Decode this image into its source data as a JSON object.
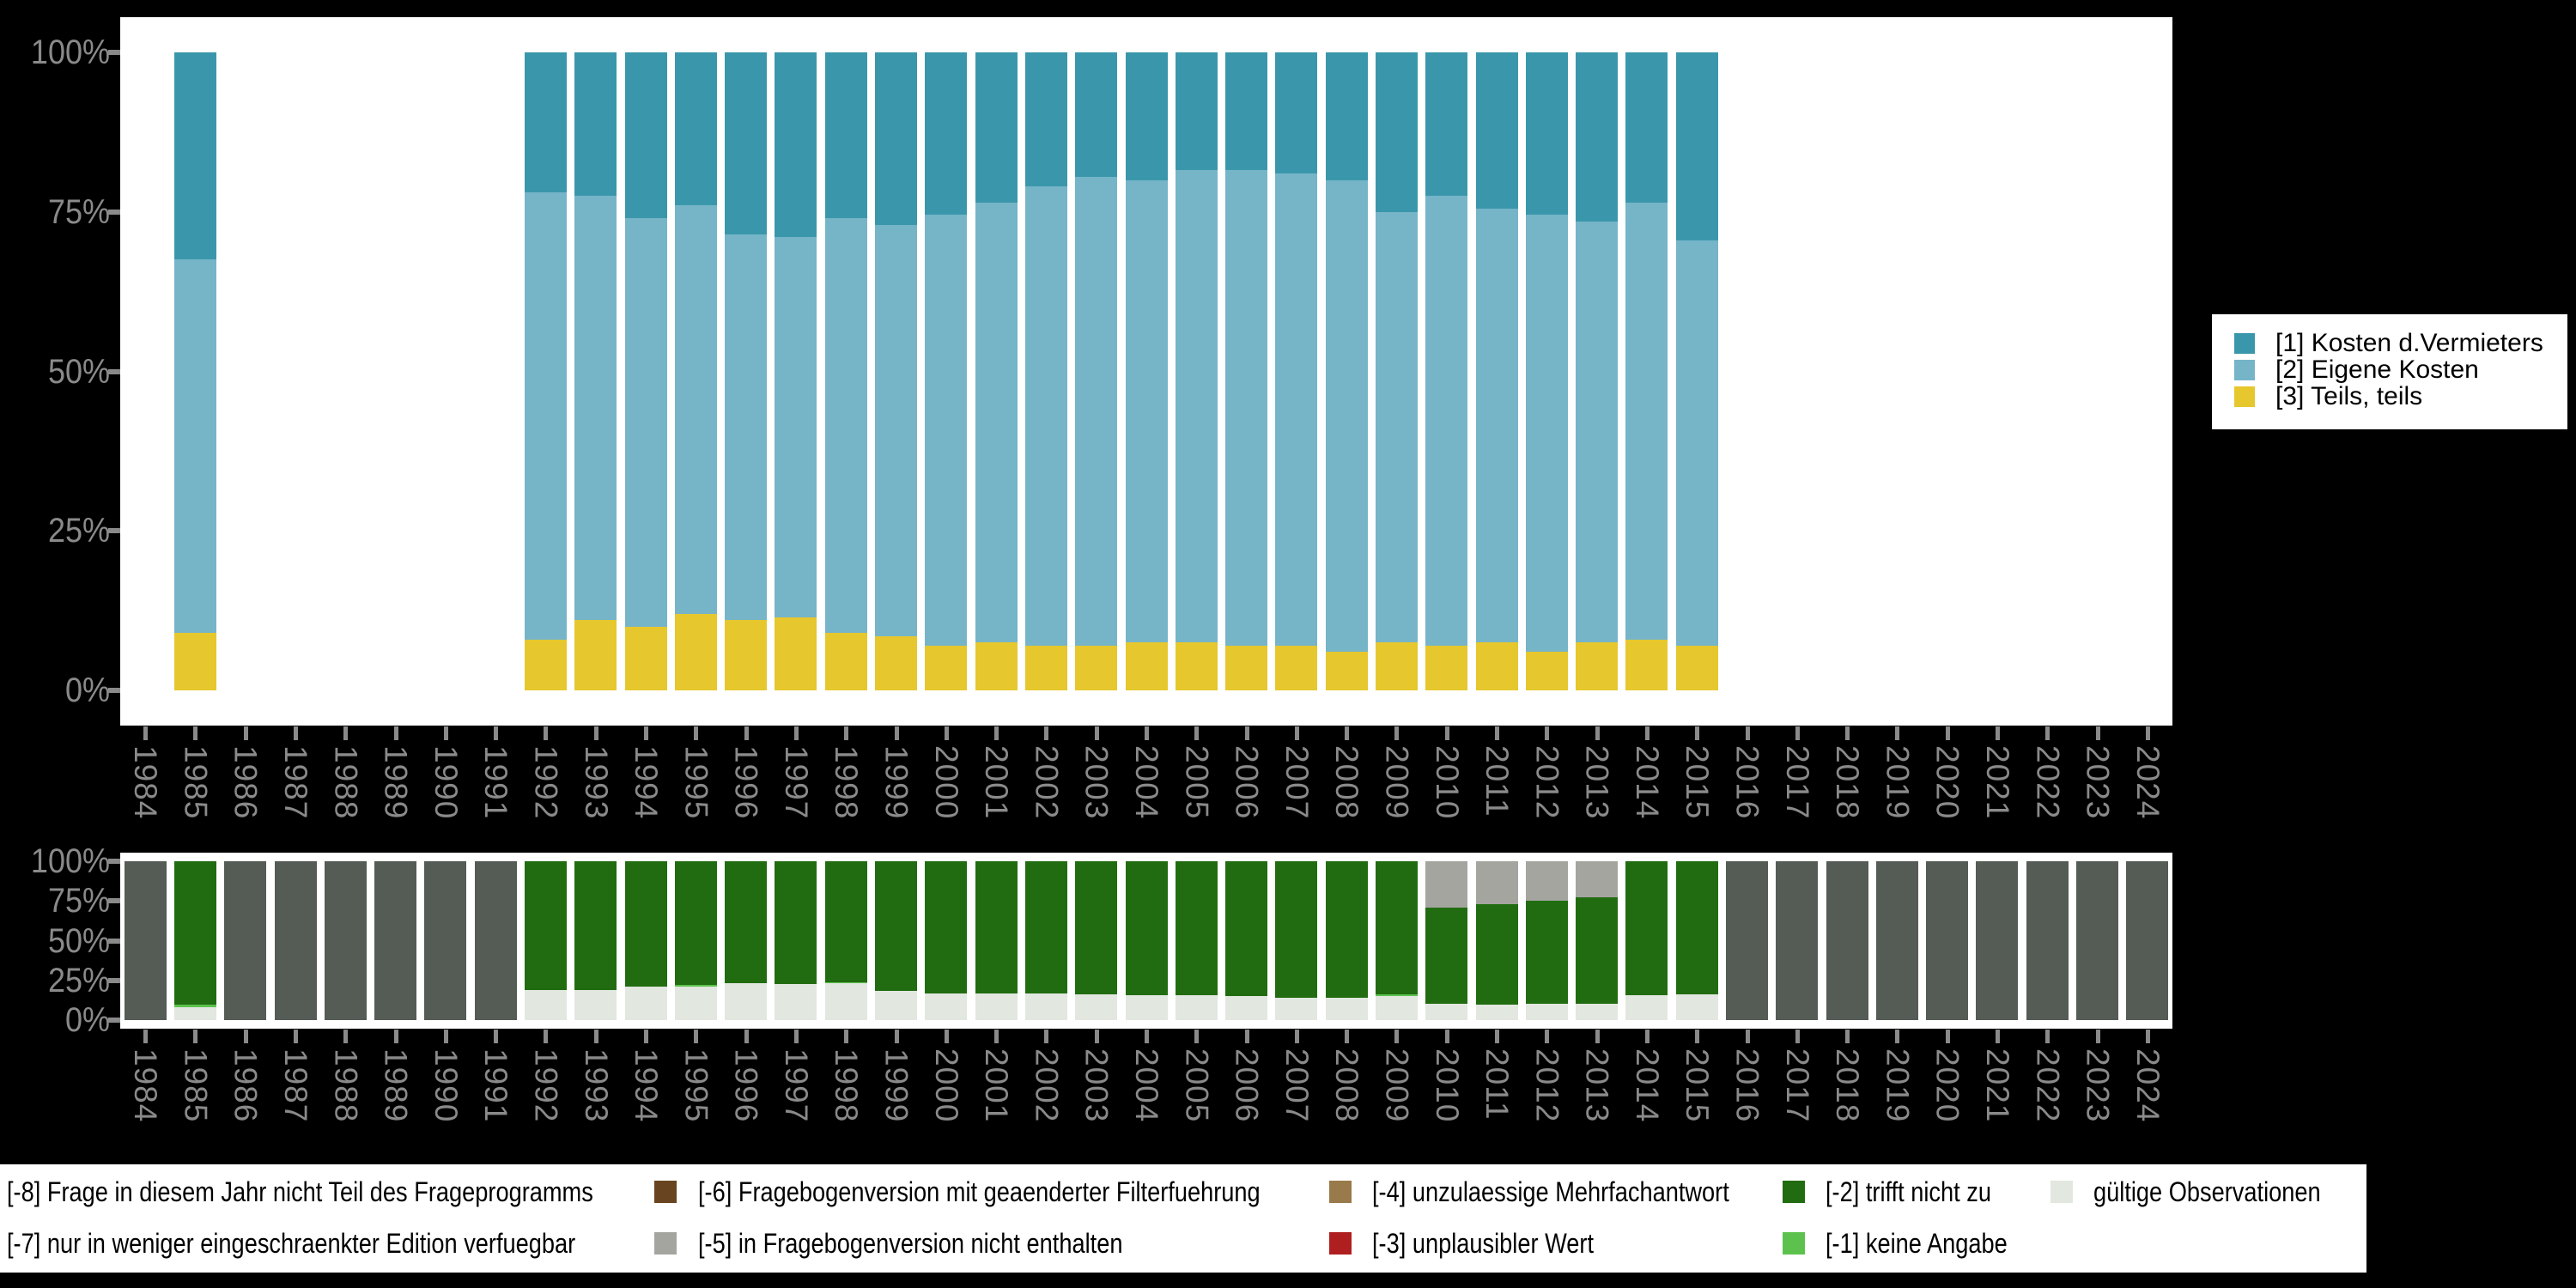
{
  "page": {
    "background": "#000000",
    "panel_color": "#ffffff",
    "axis_text_color": "#8a8a8a",
    "legend_text_color": "#000000"
  },
  "chart_data": [
    {
      "type": "bar",
      "stacked": true,
      "unit": "percent",
      "title": "",
      "xlabel": "",
      "ylabel": "",
      "ylim": [
        0,
        100
      ],
      "grid": false,
      "legend_position": "right",
      "yticks": [
        "100%",
        "75%",
        "50%",
        "25%",
        "0%"
      ],
      "categories": [
        "1984",
        "1985",
        "1986",
        "1987",
        "1988",
        "1989",
        "1990",
        "1991",
        "1992",
        "1993",
        "1994",
        "1995",
        "1996",
        "1997",
        "1998",
        "1999",
        "2000",
        "2001",
        "2002",
        "2003",
        "2004",
        "2005",
        "2006",
        "2007",
        "2008",
        "2009",
        "2010",
        "2011",
        "2012",
        "2013",
        "2014",
        "2015",
        "2016",
        "2017",
        "2018",
        "2019",
        "2020",
        "2021",
        "2022",
        "2023",
        "2024"
      ],
      "series": [
        {
          "name": "[3] Teils, teils",
          "color": "#e6c72e",
          "values": [
            0,
            9,
            0,
            0,
            0,
            0,
            0,
            0,
            8,
            11,
            10,
            12,
            11,
            11.5,
            9,
            8.5,
            7,
            7.5,
            7,
            7,
            7.5,
            7.5,
            7,
            7,
            6,
            7.5,
            7,
            7.5,
            6,
            7.5,
            8,
            7,
            0,
            0,
            0,
            0,
            0,
            0,
            0,
            0,
            0
          ]
        },
        {
          "name": "[2] Eigene Kosten",
          "color": "#76b4c8",
          "values": [
            0,
            58.5,
            0,
            0,
            0,
            0,
            0,
            0,
            70,
            66.5,
            64,
            64,
            60.5,
            59.5,
            65,
            64.5,
            67.5,
            69,
            72,
            73.5,
            72.5,
            74,
            74.5,
            74,
            74,
            67.5,
            70.5,
            68,
            68.5,
            66,
            68.5,
            63.5,
            0,
            0,
            0,
            0,
            0,
            0,
            0,
            0,
            0
          ]
        },
        {
          "name": "[1] Kosten d.Vermieters",
          "color": "#3a97ab",
          "values": [
            0,
            32.5,
            0,
            0,
            0,
            0,
            0,
            0,
            22,
            22.5,
            26,
            24,
            28.5,
            29,
            26,
            27,
            25.5,
            23.5,
            21,
            19.5,
            20,
            18.5,
            18.5,
            19,
            20,
            25,
            22.5,
            24.5,
            25.5,
            26.5,
            23.5,
            29.5,
            0,
            0,
            0,
            0,
            0,
            0,
            0,
            0,
            0
          ]
        }
      ],
      "legend": [
        {
          "label": "[1] Kosten d.Vermieters",
          "color": "#3a97ab"
        },
        {
          "label": "[2] Eigene Kosten",
          "color": "#76b4c8"
        },
        {
          "label": "[3] Teils, teils",
          "color": "#e6c72e"
        }
      ]
    },
    {
      "type": "bar",
      "stacked": true,
      "unit": "percent",
      "title": "",
      "xlabel": "",
      "ylabel": "",
      "ylim": [
        0,
        100
      ],
      "grid": false,
      "legend_position": "bottom",
      "yticks": [
        "100%",
        "75%",
        "50%",
        "25%",
        "0%"
      ],
      "categories": [
        "1984",
        "1985",
        "1986",
        "1987",
        "1988",
        "1989",
        "1990",
        "1991",
        "1992",
        "1993",
        "1994",
        "1995",
        "1996",
        "1997",
        "1998",
        "1999",
        "2000",
        "2001",
        "2002",
        "2003",
        "2004",
        "2005",
        "2006",
        "2007",
        "2008",
        "2009",
        "2010",
        "2011",
        "2012",
        "2013",
        "2014",
        "2015",
        "2016",
        "2017",
        "2018",
        "2019",
        "2020",
        "2021",
        "2022",
        "2023",
        "2024"
      ],
      "series": [
        {
          "name": "gültige Observationen",
          "color": "#e2e7e0",
          "values": [
            0,
            8,
            0,
            0,
            0,
            0,
            0,
            0,
            19,
            19,
            21,
            21,
            23,
            22.5,
            23,
            18.5,
            17,
            17,
            17,
            16,
            15.5,
            15.5,
            15,
            14,
            14,
            15,
            10.5,
            10,
            10.5,
            10.5,
            15.5,
            16,
            0,
            0,
            0,
            0,
            0,
            0,
            0,
            0,
            0
          ]
        },
        {
          "name": "[-1] keine Angabe",
          "color": "#5cc24d",
          "values": [
            0,
            1.5,
            0,
            0,
            0,
            0,
            0,
            0,
            0,
            0,
            0,
            1,
            0,
            0,
            1,
            0,
            0,
            0,
            0,
            0,
            0,
            0,
            0,
            0,
            0,
            1,
            0,
            0,
            0,
            0,
            0,
            0,
            0,
            0,
            0,
            0,
            0,
            0,
            0,
            0,
            0
          ]
        },
        {
          "name": "[-2] trifft nicht zu",
          "color": "#216c10",
          "values": [
            0,
            90.5,
            0,
            0,
            0,
            0,
            0,
            0,
            81,
            81,
            79,
            78,
            77,
            77.5,
            76,
            81.5,
            83,
            83,
            83,
            84,
            84.5,
            84.5,
            85,
            86,
            86,
            84,
            60.5,
            63,
            64.5,
            67,
            84.5,
            84,
            0,
            0,
            0,
            0,
            0,
            0,
            0,
            0,
            0
          ]
        },
        {
          "name": "[-5] in Fragebogenversion nicht enthalten",
          "color": "#a5a5a0",
          "values": [
            0,
            0,
            0,
            0,
            0,
            0,
            0,
            0,
            0,
            0,
            0,
            0,
            0,
            0,
            0,
            0,
            0,
            0,
            0,
            0,
            0,
            0,
            0,
            0,
            0,
            0,
            29,
            27,
            25,
            22.5,
            0,
            0,
            0,
            0,
            0,
            0,
            0,
            0,
            0,
            0,
            0
          ]
        },
        {
          "name": "[-8] Frage in diesem Jahr nicht Teil des Frageprogramms",
          "color": "#555b55",
          "values": [
            100,
            0,
            100,
            100,
            100,
            100,
            100,
            100,
            0,
            0,
            0,
            0,
            0,
            0,
            0,
            0,
            0,
            0,
            0,
            0,
            0,
            0,
            0,
            0,
            0,
            0,
            0,
            0,
            0,
            0,
            0,
            0,
            100,
            100,
            100,
            100,
            100,
            100,
            100,
            100,
            100
          ]
        }
      ],
      "legend": [
        {
          "label": "[-8] Frage in diesem Jahr nicht Teil des Frageprogramms",
          "color": null,
          "col": 0,
          "row": 0
        },
        {
          "label": "[-7] nur in weniger eingeschraenkter Edition verfuegbar",
          "color": null,
          "col": 0,
          "row": 1
        },
        {
          "label": "[-6] Fragebogenversion mit geaenderter Filterfuehrung",
          "color": "#684420",
          "col": 1,
          "row": 0
        },
        {
          "label": "[-5] in Fragebogenversion nicht enthalten",
          "color": "#a5a5a0",
          "col": 1,
          "row": 1
        },
        {
          "label": "[-4] unzulaessige Mehrfachantwort",
          "color": "#997a4a",
          "col": 2,
          "row": 0
        },
        {
          "label": "[-3] unplausibler Wert",
          "color": "#b01f1f",
          "col": 2,
          "row": 1
        },
        {
          "label": "[-2] trifft nicht zu",
          "color": "#216c10",
          "col": 3,
          "row": 0
        },
        {
          "label": "[-1] keine Angabe",
          "color": "#5cc24d",
          "col": 3,
          "row": 1
        },
        {
          "label": "gültige Observationen",
          "color": "#e2e7e0",
          "col": 4,
          "row": 0
        }
      ]
    }
  ]
}
